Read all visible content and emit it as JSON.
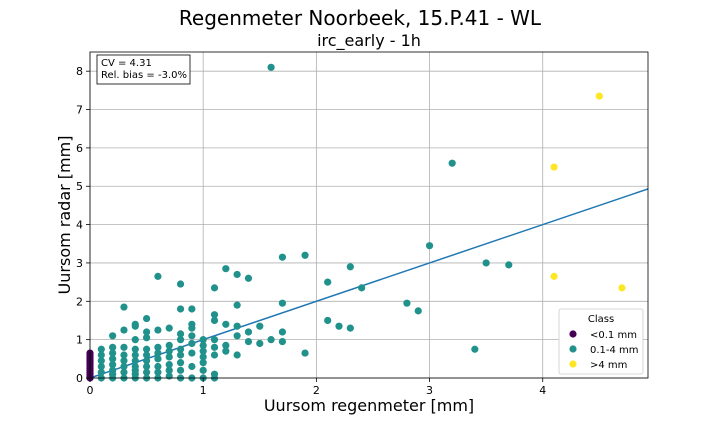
{
  "chart_data": {
    "type": "scatter",
    "title": "Regenmeter Noorbeek, 15.P.41 - WL",
    "subtitle": "irc_early - 1h",
    "xlabel": "Uursom regenmeter [mm]",
    "ylabel": "Uursom radar [mm]",
    "xlim": [
      0,
      4.93
    ],
    "ylim": [
      0,
      8.5
    ],
    "xticks": [
      0,
      1,
      2,
      3,
      4
    ],
    "yticks": [
      0,
      1,
      2,
      3,
      4,
      5,
      6,
      7,
      8
    ],
    "grid": true,
    "stats": {
      "cv": "CV = 4.31",
      "bias": "Rel. bias = -3.0%"
    },
    "fit_line": {
      "x": [
        0,
        4.93
      ],
      "y": [
        0,
        4.93
      ]
    },
    "legend": {
      "title": "Class",
      "position": "lower-right"
    },
    "series": [
      {
        "name": "<0.1 mm",
        "color": "#440154",
        "points": [
          [
            0,
            0
          ],
          [
            0,
            0.05
          ],
          [
            0,
            0.1
          ],
          [
            0,
            0.15
          ],
          [
            0,
            0.2
          ],
          [
            0,
            0.25
          ],
          [
            0,
            0.3
          ],
          [
            0,
            0.35
          ],
          [
            0,
            0.4
          ],
          [
            0,
            0.45
          ],
          [
            0,
            0.5
          ],
          [
            0,
            0.55
          ],
          [
            0,
            0.6
          ],
          [
            0,
            0.65
          ]
        ]
      },
      {
        "name": "0.1-4 mm",
        "color": "#21918c",
        "points": [
          [
            0.1,
            0.0
          ],
          [
            0.1,
            0.15
          ],
          [
            0.1,
            0.3
          ],
          [
            0.1,
            0.45
          ],
          [
            0.1,
            0.6
          ],
          [
            0.1,
            0.75
          ],
          [
            0.2,
            0.0
          ],
          [
            0.2,
            0.1
          ],
          [
            0.2,
            0.2
          ],
          [
            0.2,
            0.35
          ],
          [
            0.2,
            0.5
          ],
          [
            0.2,
            0.65
          ],
          [
            0.2,
            0.8
          ],
          [
            0.2,
            1.1
          ],
          [
            0.3,
            0.0
          ],
          [
            0.3,
            0.15
          ],
          [
            0.3,
            0.3
          ],
          [
            0.3,
            0.45
          ],
          [
            0.3,
            0.6
          ],
          [
            0.3,
            0.8
          ],
          [
            0.3,
            1.25
          ],
          [
            0.3,
            1.85
          ],
          [
            0.4,
            0.0
          ],
          [
            0.4,
            0.1
          ],
          [
            0.4,
            0.2
          ],
          [
            0.4,
            0.3
          ],
          [
            0.4,
            0.45
          ],
          [
            0.4,
            0.6
          ],
          [
            0.4,
            0.75
          ],
          [
            0.4,
            1.0
          ],
          [
            0.4,
            1.35
          ],
          [
            0.4,
            1.4
          ],
          [
            0.5,
            0.0
          ],
          [
            0.5,
            0.15
          ],
          [
            0.5,
            0.3
          ],
          [
            0.5,
            0.45
          ],
          [
            0.5,
            0.6
          ],
          [
            0.5,
            0.75
          ],
          [
            0.5,
            1.05
          ],
          [
            0.5,
            1.2
          ],
          [
            0.5,
            1.55
          ],
          [
            0.6,
            0.0
          ],
          [
            0.6,
            0.15
          ],
          [
            0.6,
            0.3
          ],
          [
            0.6,
            0.5
          ],
          [
            0.6,
            0.65
          ],
          [
            0.6,
            0.8
          ],
          [
            0.6,
            1.25
          ],
          [
            0.6,
            2.65
          ],
          [
            0.7,
            0.05
          ],
          [
            0.7,
            0.2
          ],
          [
            0.7,
            0.35
          ],
          [
            0.7,
            0.55
          ],
          [
            0.7,
            0.7
          ],
          [
            0.7,
            0.85
          ],
          [
            0.7,
            1.3
          ],
          [
            0.8,
            0.0
          ],
          [
            0.8,
            0.2
          ],
          [
            0.8,
            0.4
          ],
          [
            0.8,
            0.6
          ],
          [
            0.8,
            0.75
          ],
          [
            0.8,
            1.0
          ],
          [
            0.8,
            1.15
          ],
          [
            0.8,
            1.8
          ],
          [
            0.8,
            2.45
          ],
          [
            0.9,
            0.0
          ],
          [
            0.9,
            0.3
          ],
          [
            0.9,
            0.65
          ],
          [
            0.9,
            0.9
          ],
          [
            0.9,
            1.1
          ],
          [
            0.9,
            1.3
          ],
          [
            0.9,
            1.4
          ],
          [
            0.9,
            1.8
          ],
          [
            1.0,
            0.0
          ],
          [
            1.0,
            0.2
          ],
          [
            1.0,
            0.4
          ],
          [
            1.0,
            0.55
          ],
          [
            1.0,
            0.7
          ],
          [
            1.0,
            0.85
          ],
          [
            1.0,
            1.0
          ],
          [
            1.1,
            0.0
          ],
          [
            1.1,
            0.1
          ],
          [
            1.1,
            0.6
          ],
          [
            1.1,
            0.8
          ],
          [
            1.1,
            1.0
          ],
          [
            1.1,
            1.5
          ],
          [
            1.1,
            1.65
          ],
          [
            1.1,
            2.35
          ],
          [
            1.2,
            0.7
          ],
          [
            1.2,
            0.85
          ],
          [
            1.2,
            1.4
          ],
          [
            1.2,
            2.85
          ],
          [
            1.3,
            0.6
          ],
          [
            1.3,
            1.1
          ],
          [
            1.3,
            1.35
          ],
          [
            1.3,
            1.9
          ],
          [
            1.3,
            2.7
          ],
          [
            1.4,
            0.95
          ],
          [
            1.4,
            1.2
          ],
          [
            1.4,
            2.6
          ],
          [
            1.5,
            0.9
          ],
          [
            1.5,
            1.35
          ],
          [
            1.6,
            1.0
          ],
          [
            1.6,
            8.1
          ],
          [
            1.7,
            0.95
          ],
          [
            1.7,
            1.2
          ],
          [
            1.7,
            1.95
          ],
          [
            1.7,
            3.15
          ],
          [
            1.9,
            0.65
          ],
          [
            1.9,
            3.2
          ],
          [
            2.1,
            1.5
          ],
          [
            2.1,
            2.5
          ],
          [
            2.2,
            1.35
          ],
          [
            2.3,
            1.3
          ],
          [
            2.3,
            2.9
          ],
          [
            2.4,
            2.35
          ],
          [
            2.8,
            1.95
          ],
          [
            2.9,
            1.75
          ],
          [
            3.0,
            3.45
          ],
          [
            3.2,
            5.6
          ],
          [
            3.4,
            0.75
          ],
          [
            3.5,
            3.0
          ],
          [
            3.7,
            2.95
          ]
        ]
      },
      {
        "name": ">4 mm",
        "color": "#fde725",
        "points": [
          [
            4.1,
            5.5
          ],
          [
            4.1,
            2.65
          ],
          [
            4.5,
            7.35
          ],
          [
            4.7,
            2.35
          ]
        ]
      }
    ]
  }
}
